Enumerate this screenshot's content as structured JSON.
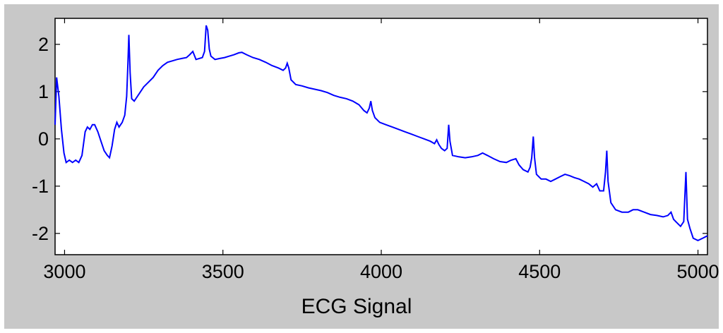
{
  "chart_data": {
    "type": "line",
    "title": "",
    "xlabel": "ECG Signal",
    "ylabel": "",
    "xlim": [
      2970,
      5030
    ],
    "ylim": [
      -2.45,
      2.55
    ],
    "xticks": [
      3000,
      3500,
      4000,
      4500,
      5000
    ],
    "yticks": [
      2,
      1,
      0,
      -1,
      -2
    ],
    "xtick_labels": [
      "3000",
      "3500",
      "4000",
      "4500",
      "5000"
    ],
    "ytick_labels": [
      "2",
      "1",
      "0",
      "-1",
      "-2"
    ],
    "grid": false,
    "legend": "none",
    "series": [
      {
        "color": "#0000ff",
        "points": [
          [
            2970,
            0.3
          ],
          [
            2975,
            1.3
          ],
          [
            2982,
            0.9
          ],
          [
            2990,
            0.2
          ],
          [
            2998,
            -0.3
          ],
          [
            3005,
            -0.5
          ],
          [
            3015,
            -0.45
          ],
          [
            3025,
            -0.5
          ],
          [
            3035,
            -0.45
          ],
          [
            3045,
            -0.5
          ],
          [
            3055,
            -0.35
          ],
          [
            3065,
            0.15
          ],
          [
            3072,
            0.25
          ],
          [
            3080,
            0.2
          ],
          [
            3088,
            0.3
          ],
          [
            3095,
            0.3
          ],
          [
            3105,
            0.15
          ],
          [
            3115,
            -0.05
          ],
          [
            3125,
            -0.25
          ],
          [
            3135,
            -0.35
          ],
          [
            3142,
            -0.4
          ],
          [
            3150,
            -0.15
          ],
          [
            3158,
            0.2
          ],
          [
            3165,
            0.35
          ],
          [
            3172,
            0.25
          ],
          [
            3182,
            0.35
          ],
          [
            3190,
            0.5
          ],
          [
            3196,
            0.9
          ],
          [
            3200,
            1.6
          ],
          [
            3203,
            2.2
          ],
          [
            3207,
            1.4
          ],
          [
            3212,
            0.85
          ],
          [
            3220,
            0.8
          ],
          [
            3235,
            0.95
          ],
          [
            3250,
            1.1
          ],
          [
            3265,
            1.2
          ],
          [
            3280,
            1.3
          ],
          [
            3295,
            1.45
          ],
          [
            3310,
            1.55
          ],
          [
            3325,
            1.62
          ],
          [
            3340,
            1.65
          ],
          [
            3355,
            1.68
          ],
          [
            3370,
            1.7
          ],
          [
            3385,
            1.72
          ],
          [
            3395,
            1.78
          ],
          [
            3405,
            1.85
          ],
          [
            3415,
            1.68
          ],
          [
            3425,
            1.7
          ],
          [
            3435,
            1.72
          ],
          [
            3442,
            1.85
          ],
          [
            3447,
            2.4
          ],
          [
            3452,
            2.3
          ],
          [
            3457,
            1.9
          ],
          [
            3462,
            1.75
          ],
          [
            3475,
            1.68
          ],
          [
            3490,
            1.7
          ],
          [
            3505,
            1.72
          ],
          [
            3520,
            1.75
          ],
          [
            3535,
            1.78
          ],
          [
            3550,
            1.82
          ],
          [
            3560,
            1.83
          ],
          [
            3575,
            1.78
          ],
          [
            3595,
            1.72
          ],
          [
            3615,
            1.68
          ],
          [
            3635,
            1.62
          ],
          [
            3655,
            1.55
          ],
          [
            3675,
            1.5
          ],
          [
            3690,
            1.45
          ],
          [
            3698,
            1.5
          ],
          [
            3703,
            1.6
          ],
          [
            3708,
            1.5
          ],
          [
            3715,
            1.25
          ],
          [
            3730,
            1.15
          ],
          [
            3750,
            1.12
          ],
          [
            3770,
            1.08
          ],
          [
            3790,
            1.05
          ],
          [
            3810,
            1.02
          ],
          [
            3830,
            0.98
          ],
          [
            3850,
            0.92
          ],
          [
            3870,
            0.88
          ],
          [
            3890,
            0.85
          ],
          [
            3910,
            0.8
          ],
          [
            3930,
            0.72
          ],
          [
            3945,
            0.6
          ],
          [
            3955,
            0.55
          ],
          [
            3962,
            0.65
          ],
          [
            3967,
            0.8
          ],
          [
            3972,
            0.6
          ],
          [
            3980,
            0.45
          ],
          [
            3995,
            0.35
          ],
          [
            4015,
            0.3
          ],
          [
            4035,
            0.25
          ],
          [
            4055,
            0.2
          ],
          [
            4075,
            0.15
          ],
          [
            4095,
            0.1
          ],
          [
            4115,
            0.05
          ],
          [
            4135,
            0.0
          ],
          [
            4155,
            -0.05
          ],
          [
            4168,
            -0.1
          ],
          [
            4175,
            -0.02
          ],
          [
            4182,
            -0.12
          ],
          [
            4190,
            -0.2
          ],
          [
            4200,
            -0.25
          ],
          [
            4208,
            -0.2
          ],
          [
            4213,
            0.3
          ],
          [
            4217,
            -0.05
          ],
          [
            4225,
            -0.35
          ],
          [
            4245,
            -0.38
          ],
          [
            4265,
            -0.4
          ],
          [
            4285,
            -0.38
          ],
          [
            4305,
            -0.35
          ],
          [
            4320,
            -0.3
          ],
          [
            4335,
            -0.35
          ],
          [
            4355,
            -0.42
          ],
          [
            4375,
            -0.48
          ],
          [
            4395,
            -0.5
          ],
          [
            4410,
            -0.45
          ],
          [
            4425,
            -0.42
          ],
          [
            4435,
            -0.55
          ],
          [
            4448,
            -0.65
          ],
          [
            4463,
            -0.7
          ],
          [
            4470,
            -0.6
          ],
          [
            4475,
            -0.4
          ],
          [
            4480,
            0.05
          ],
          [
            4484,
            -0.4
          ],
          [
            4490,
            -0.75
          ],
          [
            4505,
            -0.85
          ],
          [
            4520,
            -0.85
          ],
          [
            4535,
            -0.9
          ],
          [
            4550,
            -0.85
          ],
          [
            4565,
            -0.8
          ],
          [
            4580,
            -0.75
          ],
          [
            4595,
            -0.78
          ],
          [
            4610,
            -0.82
          ],
          [
            4625,
            -0.85
          ],
          [
            4640,
            -0.9
          ],
          [
            4655,
            -0.95
          ],
          [
            4668,
            -1.02
          ],
          [
            4680,
            -0.95
          ],
          [
            4690,
            -1.1
          ],
          [
            4702,
            -1.1
          ],
          [
            4708,
            -0.7
          ],
          [
            4712,
            -0.25
          ],
          [
            4716,
            -0.9
          ],
          [
            4725,
            -1.35
          ],
          [
            4740,
            -1.5
          ],
          [
            4760,
            -1.55
          ],
          [
            4780,
            -1.55
          ],
          [
            4795,
            -1.5
          ],
          [
            4810,
            -1.5
          ],
          [
            4830,
            -1.55
          ],
          [
            4850,
            -1.6
          ],
          [
            4870,
            -1.62
          ],
          [
            4890,
            -1.65
          ],
          [
            4905,
            -1.62
          ],
          [
            4915,
            -1.55
          ],
          [
            4923,
            -1.7
          ],
          [
            4930,
            -1.75
          ],
          [
            4945,
            -1.85
          ],
          [
            4955,
            -1.75
          ],
          [
            4962,
            -0.7
          ],
          [
            4967,
            -1.7
          ],
          [
            4975,
            -1.9
          ],
          [
            4985,
            -2.1
          ],
          [
            5000,
            -2.15
          ],
          [
            5015,
            -2.1
          ],
          [
            5030,
            -2.05
          ]
        ]
      }
    ]
  }
}
